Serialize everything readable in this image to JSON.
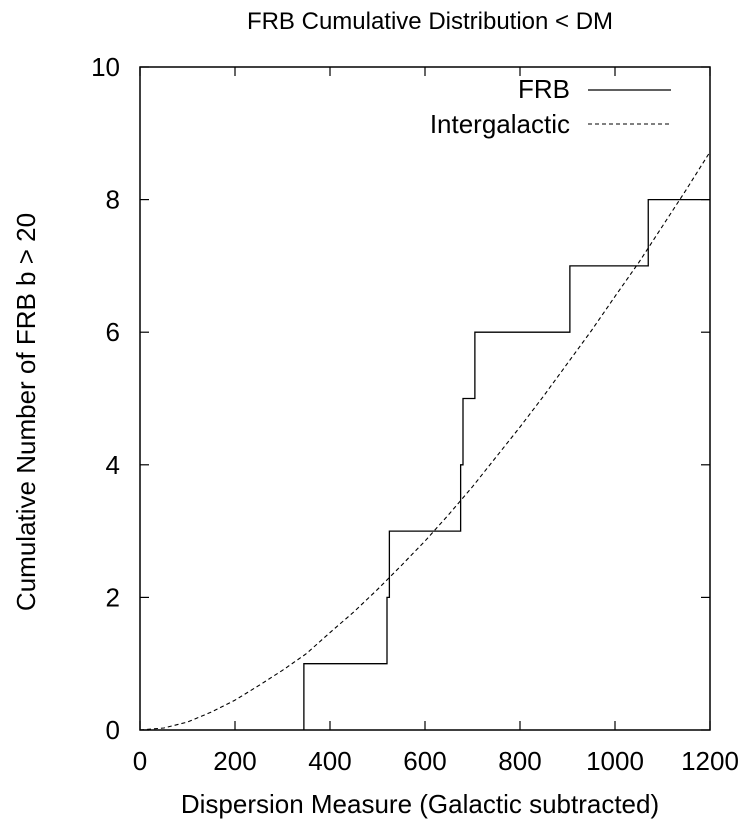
{
  "chart_data": {
    "type": "line",
    "title": "FRB Cumulative Distribution < DM",
    "xlabel": "Dispersion Measure (Galactic subtracted)",
    "ylabel": "Cumulative Number of FRB b > 20",
    "xlim": [
      0,
      1200
    ],
    "ylim": [
      0,
      10
    ],
    "x_ticks": [
      0,
      200,
      400,
      600,
      800,
      1000,
      1200
    ],
    "y_ticks": [
      0,
      2,
      4,
      6,
      8,
      10
    ],
    "grid": false,
    "legend_position": "top-right",
    "series": [
      {
        "name": "FRB",
        "style": "solid",
        "step": true,
        "points": [
          [
            345,
            0
          ],
          [
            345,
            1
          ],
          [
            520,
            1
          ],
          [
            520,
            2
          ],
          [
            525,
            2
          ],
          [
            525,
            3
          ],
          [
            675,
            3
          ],
          [
            675,
            4
          ],
          [
            680,
            4
          ],
          [
            680,
            5
          ],
          [
            705,
            5
          ],
          [
            705,
            6
          ],
          [
            905,
            6
          ],
          [
            905,
            7
          ],
          [
            1070,
            7
          ],
          [
            1070,
            8
          ],
          [
            1200,
            8
          ]
        ]
      },
      {
        "name": "Intergalactic",
        "style": "dashed",
        "step": false,
        "points": [
          [
            0,
            0
          ],
          [
            50,
            0.03
          ],
          [
            100,
            0.12
          ],
          [
            150,
            0.27
          ],
          [
            200,
            0.45
          ],
          [
            250,
            0.67
          ],
          [
            300,
            0.9
          ],
          [
            350,
            1.15
          ],
          [
            400,
            1.47
          ],
          [
            450,
            1.78
          ],
          [
            500,
            2.12
          ],
          [
            550,
            2.48
          ],
          [
            600,
            2.85
          ],
          [
            650,
            3.25
          ],
          [
            700,
            3.67
          ],
          [
            750,
            4.12
          ],
          [
            800,
            4.57
          ],
          [
            850,
            5.04
          ],
          [
            900,
            5.53
          ],
          [
            950,
            6.02
          ],
          [
            1000,
            6.54
          ],
          [
            1050,
            7.05
          ],
          [
            1100,
            7.6
          ],
          [
            1150,
            8.15
          ],
          [
            1200,
            8.72
          ]
        ]
      }
    ]
  }
}
